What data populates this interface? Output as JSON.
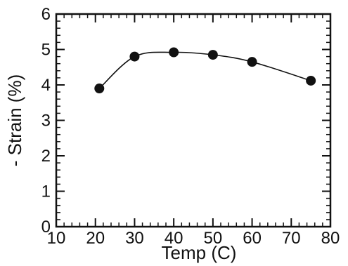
{
  "chart_data": {
    "type": "line",
    "title": "",
    "xlabel": "Temp (C)",
    "ylabel": "- Strain (%)",
    "xlim": [
      10,
      80
    ],
    "ylim": [
      0,
      6
    ],
    "x_ticks": [
      10,
      20,
      30,
      40,
      50,
      60,
      70,
      80
    ],
    "y_ticks": [
      0,
      1,
      2,
      3,
      4,
      5,
      6
    ],
    "x_tick_labels": [
      "10",
      "20",
      "30",
      "40",
      "50",
      "60",
      "70",
      "80"
    ],
    "y_tick_labels": [
      "0",
      "1",
      "2",
      "3",
      "4",
      "5",
      "6"
    ],
    "grid": false,
    "legend": "none",
    "line_color": "#111111",
    "marker_color": "#111111",
    "series": [
      {
        "x": [
          21,
          30,
          40,
          50,
          60,
          75
        ],
        "y": [
          3.9,
          4.8,
          4.92,
          4.85,
          4.65,
          4.12
        ]
      }
    ]
  }
}
